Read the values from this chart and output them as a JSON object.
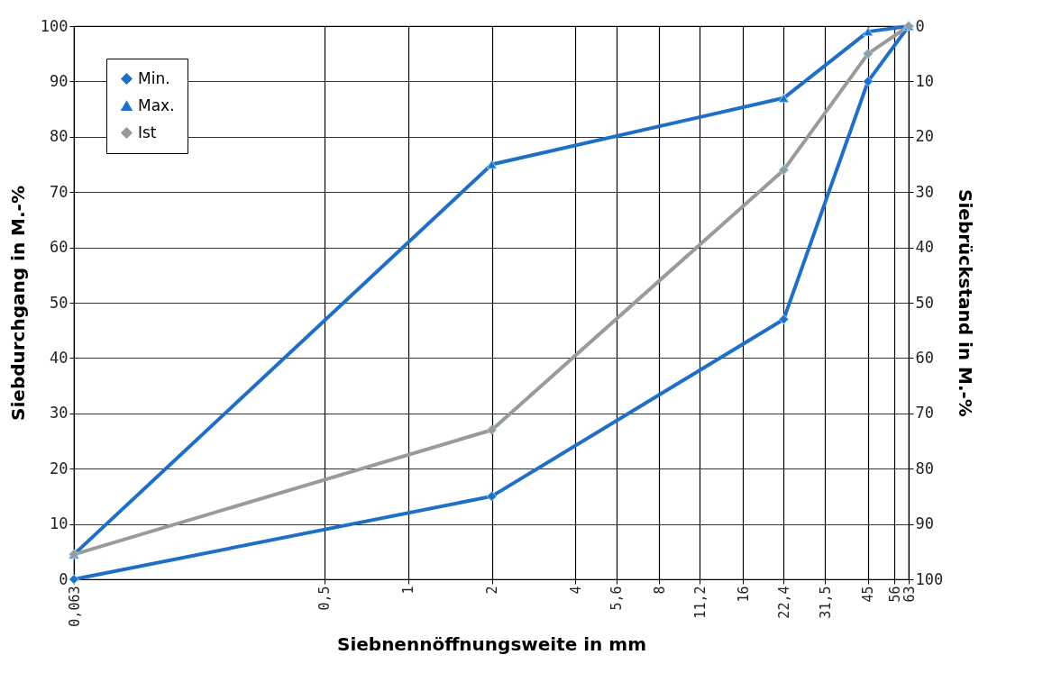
{
  "chart_data": {
    "type": "line",
    "xlabel": "Siebnennöffnungsweite in mm",
    "ylabel": "Siebdurchgang in M.-%",
    "y2label": "Siebrückstand in M.-%",
    "log": "x",
    "grid": true,
    "legend": "top left",
    "xlim": [
      0.063,
      63
    ],
    "xticks": [
      {
        "value": 0.063,
        "label": "0,063"
      },
      {
        "value": 0.5,
        "label": "0,5"
      },
      1,
      2,
      4,
      {
        "value": 5.6,
        "label": "5,6"
      },
      8,
      {
        "value": 11.2,
        "label": "11,2"
      },
      16,
      {
        "value": 22.4,
        "label": "22,4"
      },
      {
        "value": 31.5,
        "label": "31,5"
      },
      45,
      56,
      63
    ],
    "ylim": [
      0,
      100
    ],
    "yticks": [
      0,
      10,
      20,
      30,
      40,
      50,
      60,
      70,
      80,
      90,
      100
    ],
    "y2lim": [
      100,
      0
    ],
    "y2ticks": [
      0,
      10,
      20,
      30,
      40,
      50,
      60,
      70,
      80,
      90,
      100
    ],
    "x": [
      0.063,
      2,
      22.4,
      45,
      63
    ],
    "series": [
      {
        "name": "Min.",
        "color": "#1f6fc6",
        "marker": "diamond",
        "values": [
          0,
          15,
          47,
          90,
          100
        ]
      },
      {
        "name": "Max.",
        "color": "#1f6fc6",
        "marker": "triangle",
        "values": [
          4.5,
          75,
          87,
          99,
          100
        ]
      },
      {
        "name": "Ist",
        "color": "#9a9a9a",
        "marker": "diamond",
        "values": [
          4.5,
          27,
          74,
          95,
          100
        ]
      }
    ]
  }
}
